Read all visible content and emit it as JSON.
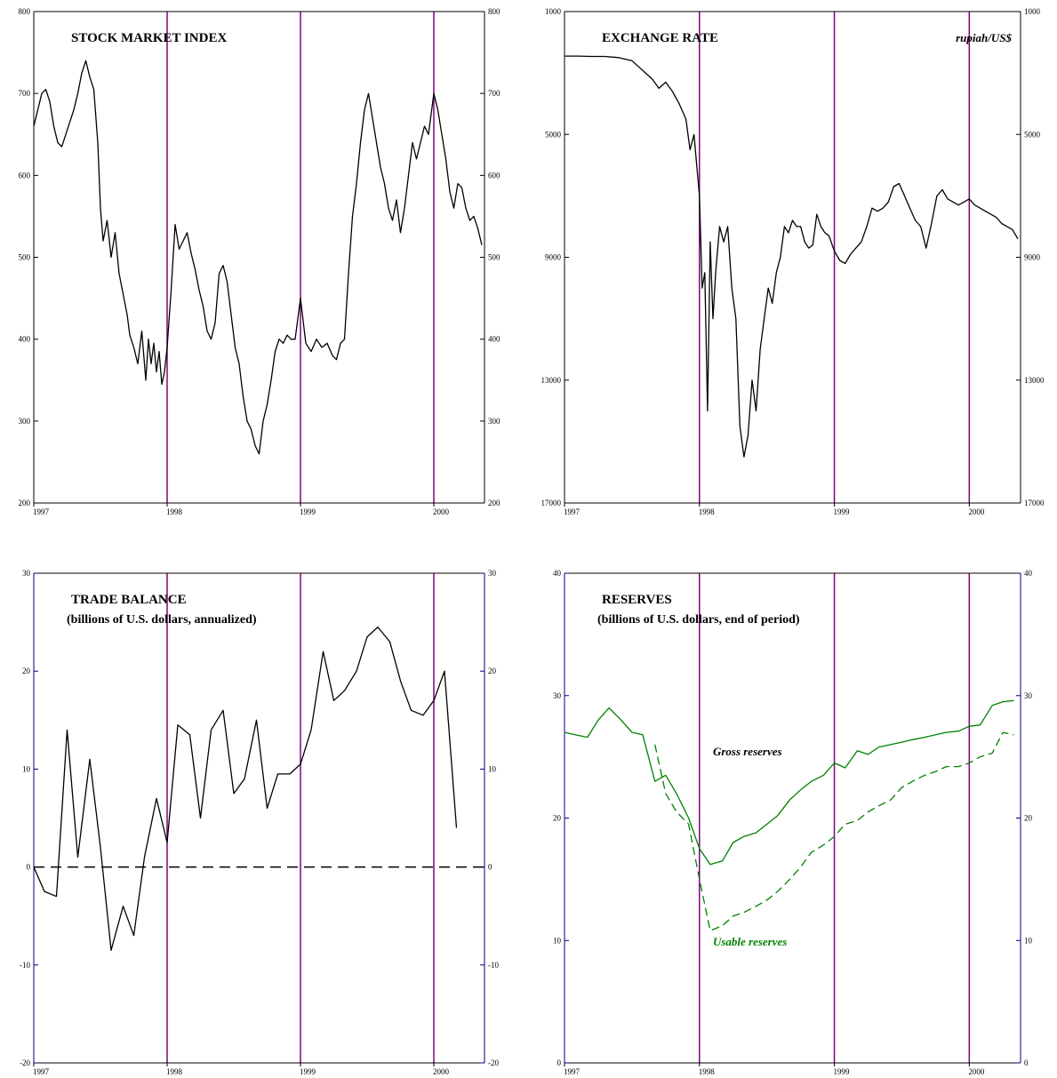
{
  "colors": {
    "divider": "#800080",
    "axis_blue": "#000080",
    "series_black": "#000000",
    "series_green": "#008000"
  },
  "chart_data": [
    {
      "id": "stock",
      "type": "line",
      "title": "STOCK MARKET INDEX",
      "subtitle": "",
      "unit_note": "",
      "xlabels": [
        "1997",
        "1998",
        "1999",
        "2000"
      ],
      "xlim": [
        1997,
        2000.38
      ],
      "ylim": [
        200,
        800
      ],
      "yticks_left": [
        "800",
        "700",
        "600",
        "500",
        "400",
        "300",
        "200"
      ],
      "yticks_right": [
        "800",
        "700",
        "600",
        "500",
        "400",
        "300",
        "200"
      ],
      "invert_y": false,
      "y_axis_color": "black",
      "dividers": [
        1998,
        1999,
        2000
      ],
      "zero_line": false,
      "series": [
        {
          "name": "",
          "style": "solid",
          "color": "#000000",
          "x": [
            1997.0,
            1997.03,
            1997.06,
            1997.09,
            1997.12,
            1997.15,
            1997.18,
            1997.21,
            1997.24,
            1997.27,
            1997.3,
            1997.33,
            1997.36,
            1997.39,
            1997.42,
            1997.45,
            1997.48,
            1997.5,
            1997.52,
            1997.55,
            1997.58,
            1997.61,
            1997.64,
            1997.67,
            1997.7,
            1997.72,
            1997.75,
            1997.78,
            1997.81,
            1997.84,
            1997.86,
            1997.88,
            1997.9,
            1997.92,
            1997.94,
            1997.96,
            1997.98,
            1998.0,
            1998.03,
            1998.06,
            1998.09,
            1998.12,
            1998.15,
            1998.18,
            1998.21,
            1998.24,
            1998.27,
            1998.3,
            1998.33,
            1998.36,
            1998.39,
            1998.42,
            1998.45,
            1998.48,
            1998.51,
            1998.54,
            1998.57,
            1998.6,
            1998.63,
            1998.66,
            1998.69,
            1998.72,
            1998.75,
            1998.78,
            1998.81,
            1998.84,
            1998.87,
            1998.9,
            1998.93,
            1998.96,
            1999.0,
            1999.04,
            1999.08,
            1999.12,
            1999.16,
            1999.2,
            1999.24,
            1999.27,
            1999.3,
            1999.33,
            1999.36,
            1999.39,
            1999.42,
            1999.45,
            1999.48,
            1999.51,
            1999.54,
            1999.57,
            1999.6,
            1999.63,
            1999.66,
            1999.69,
            1999.72,
            1999.75,
            1999.78,
            1999.81,
            1999.84,
            1999.87,
            1999.9,
            1999.93,
            1999.96,
            2000.0,
            2000.03,
            2000.06,
            2000.09,
            2000.12,
            2000.15,
            2000.18,
            2000.21,
            2000.24,
            2000.27,
            2000.3,
            2000.33,
            2000.36
          ],
          "y": [
            660,
            680,
            700,
            705,
            690,
            660,
            640,
            635,
            650,
            665,
            680,
            700,
            725,
            740,
            720,
            705,
            640,
            560,
            520,
            545,
            500,
            530,
            480,
            455,
            430,
            405,
            390,
            370,
            410,
            350,
            400,
            370,
            395,
            360,
            385,
            345,
            360,
            390,
            460,
            540,
            510,
            520,
            530,
            505,
            485,
            460,
            440,
            410,
            400,
            420,
            480,
            490,
            470,
            430,
            390,
            370,
            330,
            300,
            290,
            270,
            260,
            300,
            320,
            350,
            385,
            400,
            395,
            405,
            400,
            400,
            450,
            395,
            385,
            400,
            390,
            395,
            380,
            375,
            395,
            400,
            480,
            550,
            590,
            640,
            680,
            700,
            670,
            640,
            610,
            590,
            560,
            545,
            570,
            530,
            560,
            600,
            640,
            620,
            640,
            660,
            650,
            700,
            680,
            650,
            620,
            580,
            560,
            590,
            585,
            560,
            545,
            550,
            535,
            515
          ]
        }
      ]
    },
    {
      "id": "fx",
      "type": "line",
      "title": "EXCHANGE RATE",
      "subtitle": "",
      "unit_note": "rupiah/US$",
      "xlabels": [
        "1997",
        "1998",
        "1999",
        "2000"
      ],
      "xlim": [
        1997,
        2000.38
      ],
      "ylim": [
        1000,
        17000
      ],
      "yticks_left": [
        "1000",
        "5000",
        "9000",
        "13000",
        "17000"
      ],
      "yticks_right": [
        "1000",
        "5000",
        "9000",
        "13000",
        "17000"
      ],
      "invert_y": true,
      "y_axis_color": "black",
      "dividers": [
        1998,
        1999,
        2000
      ],
      "zero_line": false,
      "series": [
        {
          "name": "",
          "style": "solid",
          "color": "#000000",
          "x": [
            1997.0,
            1997.1,
            1997.2,
            1997.3,
            1997.4,
            1997.45,
            1997.5,
            1997.55,
            1997.6,
            1997.65,
            1997.7,
            1997.75,
            1997.8,
            1997.85,
            1997.9,
            1997.93,
            1997.96,
            1997.98,
            1998.0,
            1998.02,
            1998.04,
            1998.06,
            1998.08,
            1998.1,
            1998.12,
            1998.15,
            1998.18,
            1998.21,
            1998.24,
            1998.27,
            1998.3,
            1998.33,
            1998.36,
            1998.39,
            1998.42,
            1998.45,
            1998.48,
            1998.51,
            1998.54,
            1998.57,
            1998.6,
            1998.63,
            1998.66,
            1998.69,
            1998.72,
            1998.75,
            1998.78,
            1998.81,
            1998.84,
            1998.87,
            1998.9,
            1998.93,
            1998.96,
            1999.0,
            1999.04,
            1999.08,
            1999.12,
            1999.16,
            1999.2,
            1999.24,
            1999.28,
            1999.32,
            1999.36,
            1999.4,
            1999.44,
            1999.48,
            1999.52,
            1999.56,
            1999.6,
            1999.64,
            1999.68,
            1999.72,
            1999.76,
            1999.8,
            1999.84,
            1999.88,
            1999.92,
            1999.96,
            2000.0,
            2000.04,
            2000.08,
            2000.12,
            2000.16,
            2000.2,
            2000.24,
            2000.28,
            2000.32,
            2000.36
          ],
          "y": [
            2450,
            2450,
            2460,
            2460,
            2500,
            2550,
            2600,
            2800,
            3000,
            3200,
            3500,
            3300,
            3600,
            4000,
            4500,
            5500,
            5000,
            6000,
            7000,
            10000,
            9500,
            14000,
            8500,
            11000,
            9500,
            8000,
            8500,
            8000,
            10000,
            11000,
            14500,
            15500,
            14800,
            13000,
            14000,
            12000,
            11000,
            10000,
            10500,
            9500,
            9000,
            8000,
            8200,
            7800,
            8000,
            8000,
            8500,
            8700,
            8600,
            7600,
            8000,
            8200,
            8300,
            8800,
            9100,
            9200,
            8900,
            8700,
            8500,
            8000,
            7400,
            7500,
            7400,
            7200,
            6700,
            6600,
            7000,
            7400,
            7800,
            8000,
            8700,
            7900,
            7000,
            6800,
            7100,
            7200,
            7300,
            7200,
            7100,
            7300,
            7400,
            7500,
            7600,
            7700,
            7900,
            8000,
            8100,
            8400
          ]
        }
      ]
    },
    {
      "id": "trade",
      "type": "line",
      "title": "TRADE BALANCE",
      "subtitle": "(billions of U.S. dollars, annualized)",
      "unit_note": "",
      "xlabels": [
        "1997",
        "1998",
        "1999",
        "2000"
      ],
      "xlim": [
        1997,
        2000.38
      ],
      "ylim": [
        -20,
        30
      ],
      "yticks_left": [
        "30",
        "20",
        "10",
        "0",
        "-10",
        "-20"
      ],
      "yticks_right": [
        "30",
        "20",
        "10",
        "0",
        "-10",
        "-20"
      ],
      "invert_y": false,
      "y_axis_color": "blue",
      "dividers": [
        1998,
        1999,
        2000
      ],
      "zero_line": true,
      "series": [
        {
          "name": "",
          "style": "solid",
          "color": "#000000",
          "x": [
            1997.0,
            1997.08,
            1997.17,
            1997.25,
            1997.33,
            1997.42,
            1997.5,
            1997.58,
            1997.67,
            1997.75,
            1997.83,
            1997.92,
            1998.0,
            1998.08,
            1998.17,
            1998.25,
            1998.33,
            1998.42,
            1998.5,
            1998.58,
            1998.67,
            1998.75,
            1998.83,
            1998.92,
            1999.0,
            1999.08,
            1999.17,
            1999.25,
            1999.33,
            1999.42,
            1999.5,
            1999.58,
            1999.67,
            1999.75,
            1999.83,
            1999.92,
            2000.0,
            2000.08,
            2000.17
          ],
          "y": [
            0,
            -2.5,
            -3,
            14,
            1,
            11,
            2,
            -8.5,
            -4,
            -7,
            1,
            7,
            2.5,
            14.5,
            13.5,
            5,
            14,
            16,
            7.5,
            9,
            15,
            6,
            9.5,
            9.5,
            10.5,
            14,
            22,
            17,
            18,
            20,
            23.5,
            24.5,
            23,
            19,
            16,
            15.5,
            17,
            20,
            4
          ]
        }
      ]
    },
    {
      "id": "reserves",
      "type": "line",
      "title": "RESERVES",
      "subtitle": "(billions of U.S. dollars, end of period)",
      "unit_note": "",
      "xlabels": [
        "1997",
        "1998",
        "1999",
        "2000"
      ],
      "xlim": [
        1997,
        2000.38
      ],
      "ylim": [
        0,
        40
      ],
      "yticks_left": [
        "40",
        "30",
        "20",
        "10",
        "0"
      ],
      "yticks_right": [
        "40",
        "30",
        "20",
        "10",
        "0"
      ],
      "invert_y": false,
      "y_axis_color": "blue",
      "dividers": [
        1998,
        1999,
        2000
      ],
      "zero_line": false,
      "annotations": [
        {
          "text": "Gross reserves",
          "x": 1998.1,
          "y": 25.1,
          "color": "#000000"
        },
        {
          "text": "Usable reserves",
          "x": 1998.1,
          "y": 9.6,
          "color": "#008000"
        }
      ],
      "series": [
        {
          "name": "Gross reserves",
          "style": "solid",
          "color": "#008000",
          "x": [
            1997.0,
            1997.08,
            1997.17,
            1997.25,
            1997.33,
            1997.42,
            1997.5,
            1997.58,
            1997.67,
            1997.75,
            1997.83,
            1997.92,
            1998.0,
            1998.08,
            1998.17,
            1998.25,
            1998.33,
            1998.42,
            1998.5,
            1998.58,
            1998.67,
            1998.75,
            1998.83,
            1998.92,
            1999.0,
            1999.08,
            1999.17,
            1999.25,
            1999.33,
            1999.42,
            1999.5,
            1999.58,
            1999.67,
            1999.75,
            1999.83,
            1999.92,
            2000.0,
            2000.08,
            2000.17,
            2000.25,
            2000.33
          ],
          "y": [
            27,
            26.8,
            26.6,
            28,
            29,
            28,
            27,
            26.8,
            23,
            23.5,
            22,
            20,
            17.5,
            16.2,
            16.5,
            18,
            18.5,
            18.8,
            19.5,
            20.2,
            21.5,
            22.3,
            23,
            23.5,
            24.5,
            24.1,
            25.5,
            25.2,
            25.8,
            26,
            26.2,
            26.4,
            26.6,
            26.8,
            27,
            27.1,
            27.5,
            27.6,
            29.2,
            29.5,
            29.6
          ]
        },
        {
          "name": "Usable reserves",
          "style": "dashed",
          "color": "#008000",
          "x": [
            1997.67,
            1997.75,
            1997.83,
            1997.92,
            1998.0,
            1998.08,
            1998.17,
            1998.25,
            1998.33,
            1998.42,
            1998.5,
            1998.58,
            1998.67,
            1998.75,
            1998.83,
            1998.92,
            1999.0,
            1999.08,
            1999.17,
            1999.25,
            1999.33,
            1999.42,
            1999.5,
            1999.58,
            1999.67,
            1999.75,
            1999.83,
            1999.92,
            2000.0,
            2000.08,
            2000.17,
            2000.25,
            2000.33
          ],
          "y": [
            26,
            22,
            20.5,
            19.5,
            15,
            10.8,
            11.2,
            12,
            12.3,
            12.8,
            13.3,
            14,
            15,
            16,
            17.2,
            17.8,
            18.5,
            19.5,
            19.8,
            20.5,
            21,
            21.5,
            22.5,
            23,
            23.5,
            23.8,
            24.2,
            24.2,
            24.5,
            25,
            25.3,
            27,
            26.8
          ]
        }
      ]
    }
  ]
}
